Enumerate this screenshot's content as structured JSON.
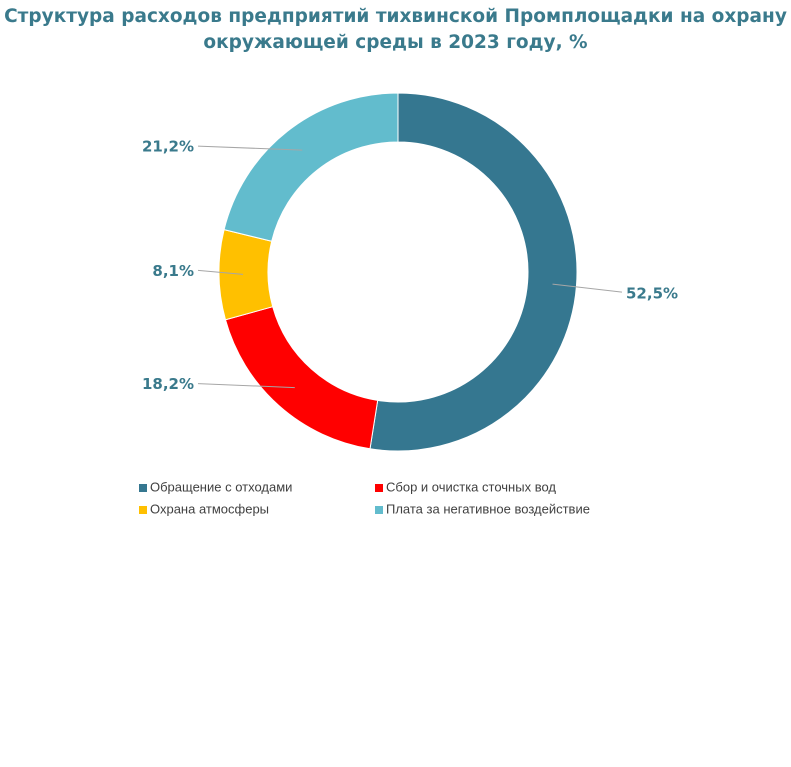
{
  "chart_data": {
    "type": "donut",
    "title": "Структура расходов предприятий тихвинской Промплощадки на охрану окружающей среды в 2023 году, %",
    "categories": [
      "Обращение с отходами",
      "Сбор и очистка сточных вод",
      "Охрана атмосферы",
      "Плата за негативное воздействие"
    ],
    "values": [
      52.5,
      18.2,
      8.1,
      21.2
    ],
    "value_labels": [
      "52,5%",
      "18,2%",
      "8,1%",
      "21,2%"
    ],
    "colors": [
      "#357790",
      "#ff0000",
      "#ffc000",
      "#62bccd"
    ],
    "legend": "bottom"
  }
}
